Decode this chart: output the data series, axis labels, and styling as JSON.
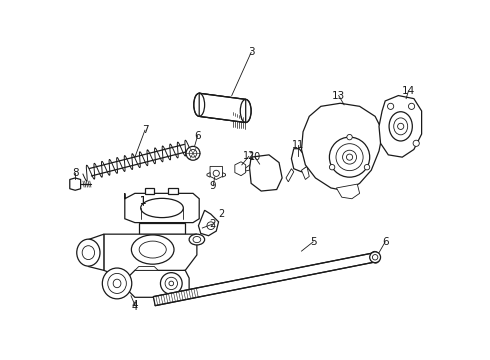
{
  "background_color": "#ffffff",
  "line_color": "#1a1a1a",
  "fig_width": 4.9,
  "fig_height": 3.6,
  "dpi": 100
}
